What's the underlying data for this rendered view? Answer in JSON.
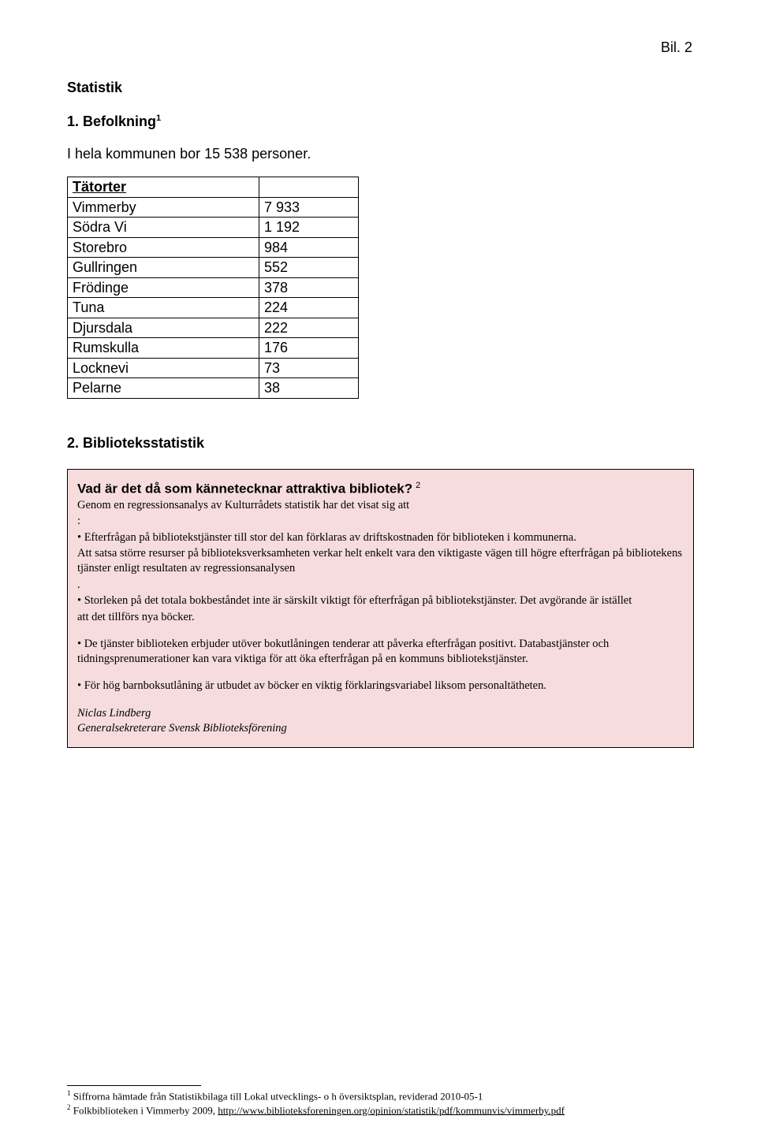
{
  "header": {
    "bil": "Bil. 2"
  },
  "section1": {
    "heading_main": "Statistik",
    "heading_num": "1. Befolkning",
    "heading_sup": "1",
    "intro": "I hela kommunen bor 15 538 personer.",
    "table": {
      "header_label": "Tätorter",
      "rows": [
        {
          "label": "Vimmerby",
          "value": "7 933"
        },
        {
          "label": "Södra Vi",
          "value": "1 192"
        },
        {
          "label": "Storebro",
          "value": "984"
        },
        {
          "label": "Gullringen",
          "value": "552"
        },
        {
          "label": "Frödinge",
          "value": "378"
        },
        {
          "label": "Tuna",
          "value": "224"
        },
        {
          "label": "Djursdala",
          "value": "222"
        },
        {
          "label": "Rumskulla",
          "value": "176"
        },
        {
          "label": "Locknevi",
          "value": "73"
        },
        {
          "label": "Pelarne",
          "value": "38"
        }
      ]
    }
  },
  "section2": {
    "heading": "2. Biblioteksstatistik",
    "box": {
      "title": "Vad är det då som kännetecknar attraktiva bibliotek?",
      "title_sup": "2",
      "lead1": "Genom en regressionsanalys av Kulturrådets statistik har det visat sig att",
      "lead2": ":",
      "bullet1": "• Efterfrågan på bibliotekstjänster till stor del kan förklaras av driftskostnaden för biblioteken i kommunerna.",
      "bullet1b": "Att satsa större resurser på biblioteksverksamheten verkar helt enkelt vara den viktigaste vägen till högre efterfrågan på bibliotekens tjänster enligt resultaten av regressionsanalysen",
      "bullet1c": ".",
      "bullet2a": "• Storleken på det totala bokbeståndet inte är särskilt viktigt för efterfrågan på bibliotekstjänster. Det avgörande är istället",
      "bullet2b": "att det tillförs nya böcker.",
      "bullet3": "• De tjänster biblioteken erbjuder utöver bokutlåningen tenderar att påverka efterfrågan positivt. Databastjänster och tidningsprenumerationer kan vara viktiga för att öka efterfrågan på en kommuns bibliotekstjänster.",
      "bullet4": "• För hög barnboksutlåning är utbudet av böcker en viktig förklaringsvariabel liksom personaltätheten.",
      "sig_name": "Niclas Lindberg",
      "sig_title": "Generalsekreterare Svensk Biblioteksförening"
    }
  },
  "footnotes": {
    "fn1_num": "1",
    "fn1_text": " Siffrorna hämtade från Statistikbilaga till Lokal utvecklings- o h översiktsplan, reviderad 2010-05-1",
    "fn2_num": "2",
    "fn2_text_a": " Folkbiblioteken i Vimmerby 2009, ",
    "fn2_link": "http://www.biblioteksforeningen.org/opinion/statistik/pdf/kommunvis/vimmerby.pdf"
  },
  "colors": {
    "box_bg": "#f7dcde",
    "border": "#000000",
    "text": "#000000",
    "background": "#ffffff"
  }
}
